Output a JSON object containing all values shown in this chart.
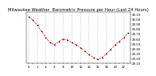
{
  "title": "Milwaukee Weather  Barometric Pressure per Hour (Last 24 Hours)",
  "x_values": [
    0,
    1,
    2,
    3,
    4,
    5,
    6,
    7,
    8,
    9,
    10,
    11,
    12,
    13,
    14,
    15,
    16,
    17,
    18,
    19,
    20,
    21,
    22,
    23
  ],
  "y_values": [
    30.05,
    29.98,
    29.88,
    29.75,
    29.62,
    29.52,
    29.48,
    29.55,
    29.6,
    29.58,
    29.52,
    29.48,
    29.42,
    29.35,
    29.28,
    29.22,
    29.18,
    29.22,
    29.3,
    29.38,
    29.48,
    29.55,
    29.62,
    29.72
  ],
  "line_color": "#ff0000",
  "marker_color": "#000000",
  "bg_color": "#ffffff",
  "ylim": [
    29.1,
    30.15
  ],
  "yticks": [
    29.1,
    29.2,
    29.3,
    29.4,
    29.5,
    29.6,
    29.7,
    29.8,
    29.9,
    30.0,
    30.1
  ],
  "grid_color": "#aaaaaa",
  "title_fontsize": 3.8,
  "tick_fontsize": 2.8
}
